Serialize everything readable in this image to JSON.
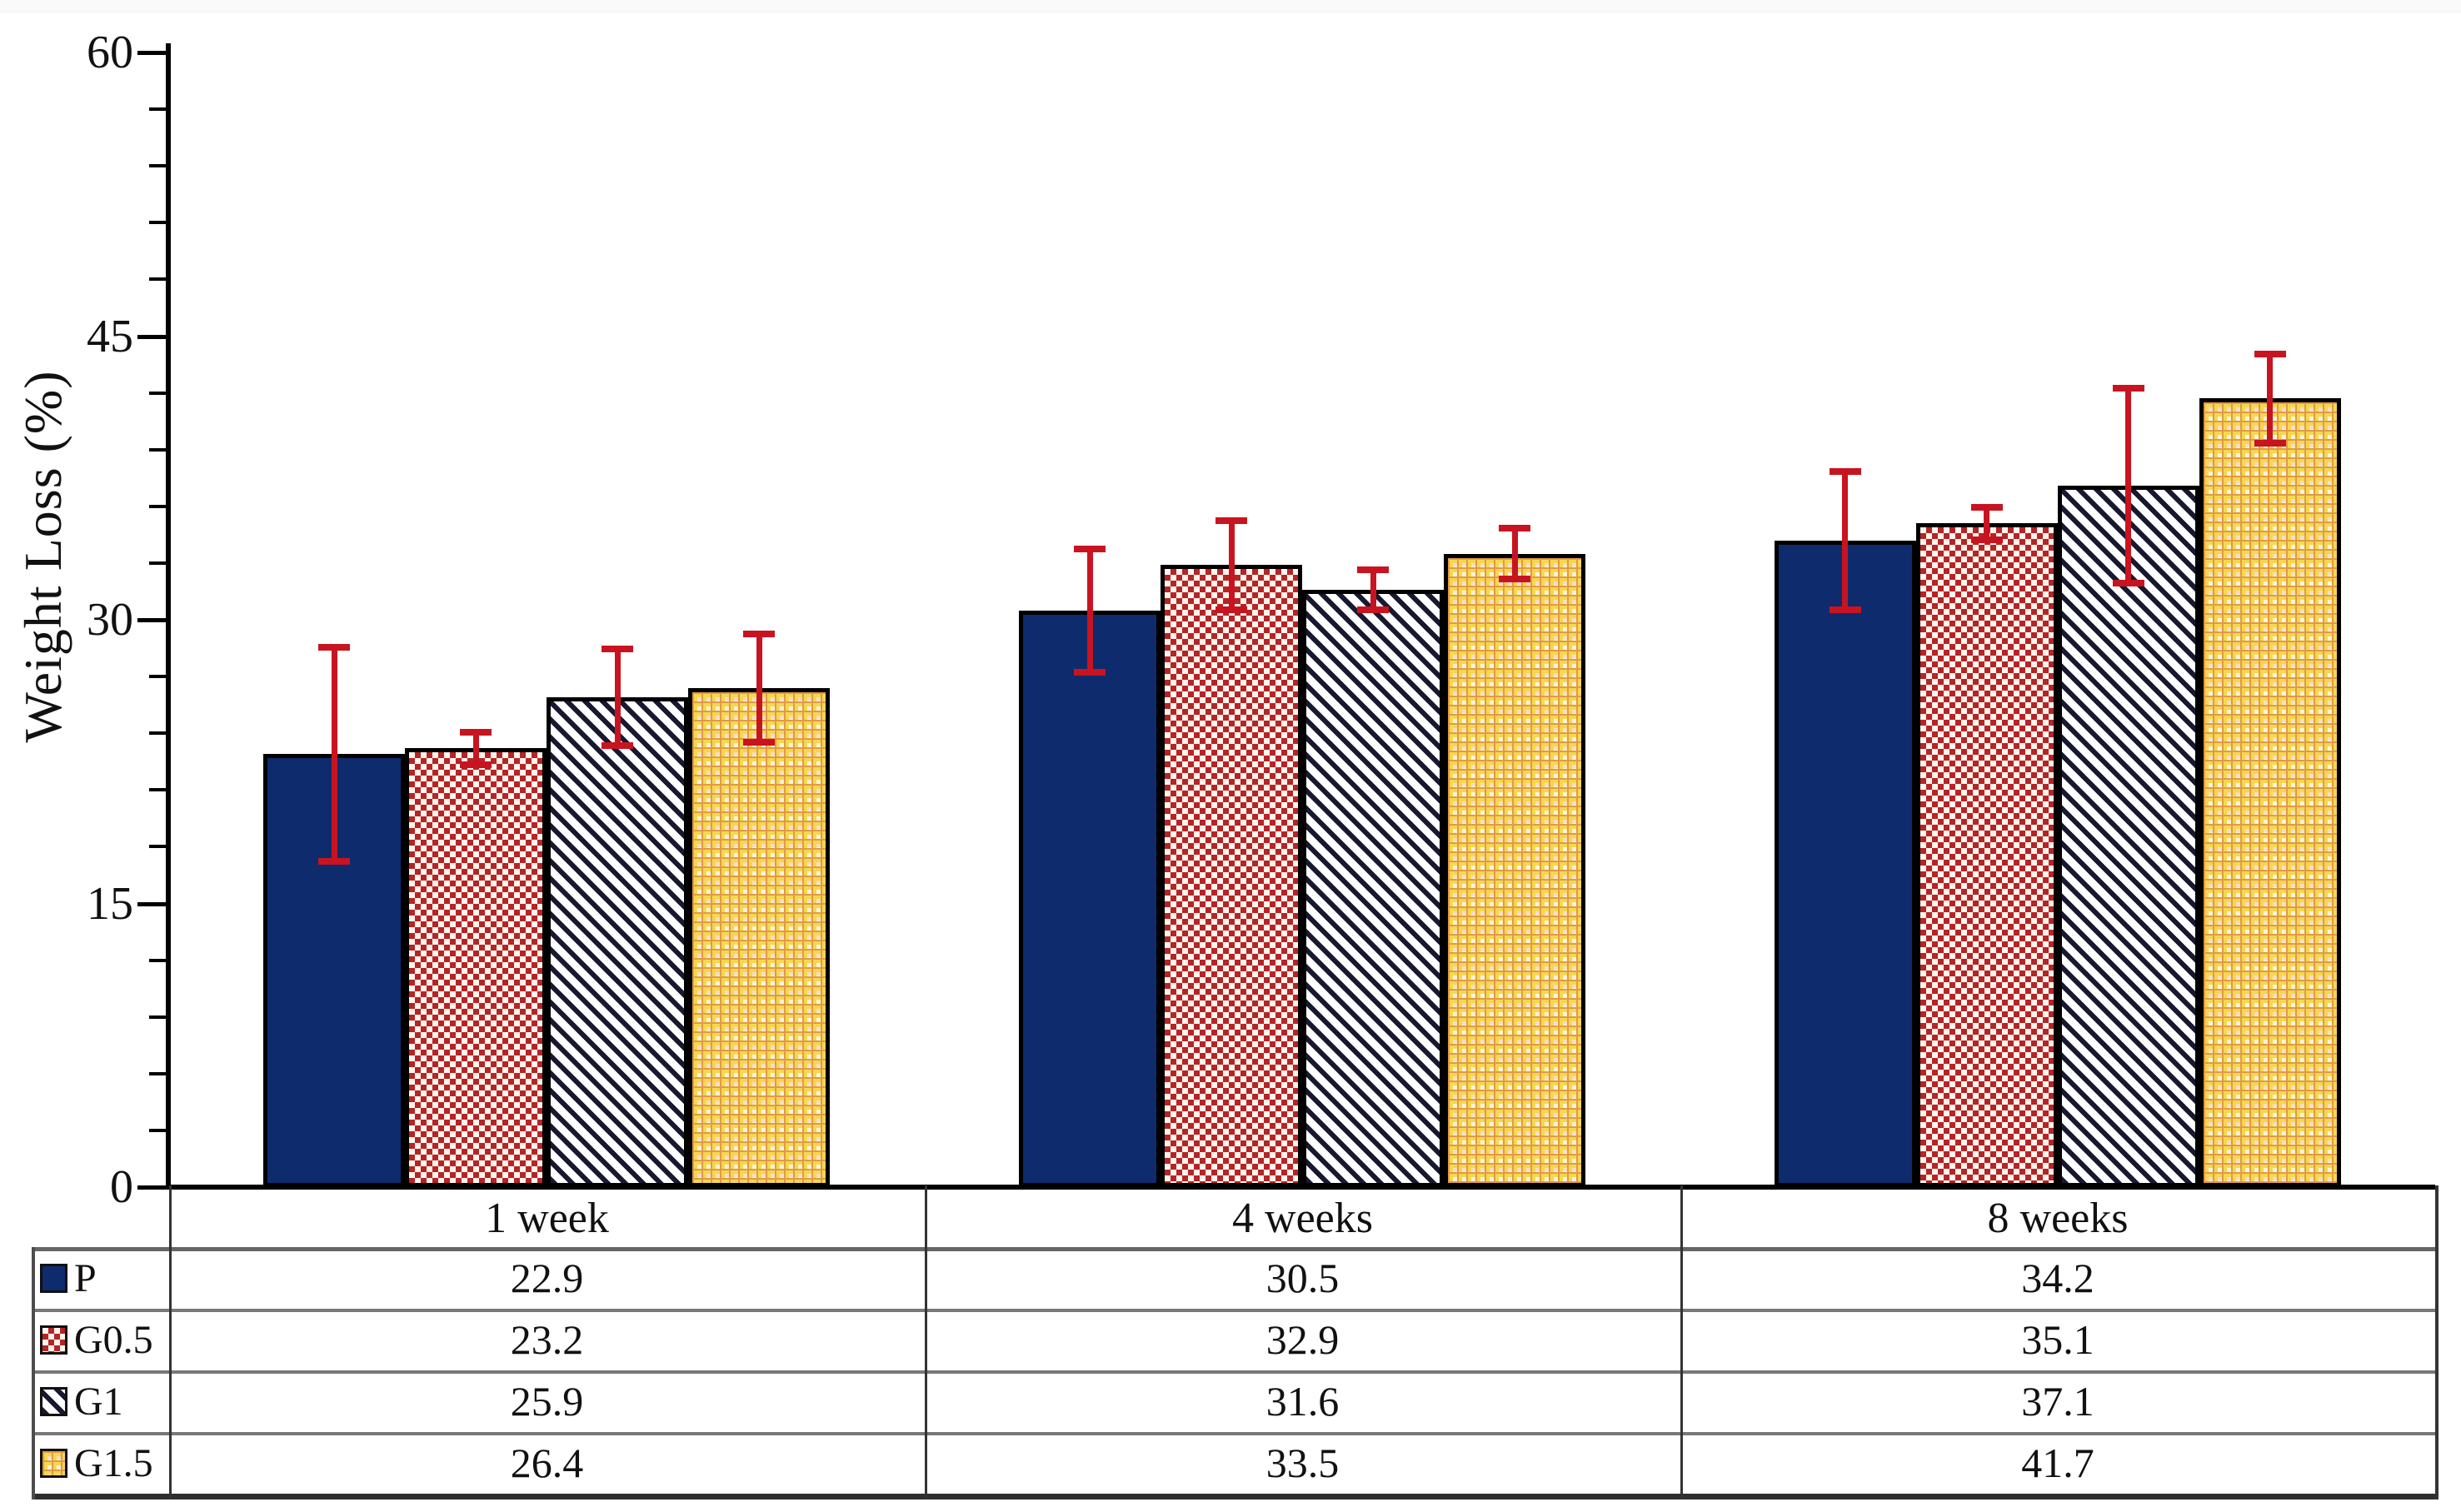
{
  "chart_data": {
    "type": "bar",
    "title": "",
    "xlabel": "",
    "ylabel": "Weight Loss (%)",
    "categories": [
      "1 week",
      "4 weeks",
      "8 weeks"
    ],
    "series": [
      {
        "name": "P",
        "pattern": "solid",
        "values": [
          22.9,
          30.5,
          34.2
        ],
        "errors": [
          5.7,
          3.3,
          3.7
        ]
      },
      {
        "name": "G0.5",
        "pattern": "checker",
        "values": [
          23.2,
          32.9,
          35.1
        ],
        "errors": [
          0.9,
          2.4,
          0.9
        ]
      },
      {
        "name": "G1",
        "pattern": "diagonal",
        "values": [
          25.9,
          31.6,
          37.1
        ],
        "errors": [
          2.6,
          1.1,
          5.2
        ]
      },
      {
        "name": "G1.5",
        "pattern": "grid",
        "values": [
          26.4,
          33.5,
          41.7
        ],
        "errors": [
          2.9,
          1.4,
          2.4
        ]
      }
    ],
    "y_axis": {
      "min": 0,
      "max": 60,
      "major_ticks": [
        0,
        15,
        30,
        45,
        60
      ],
      "minor_step": 3,
      "grid": false
    },
    "legend_position": "table-left-column",
    "colors": {
      "solid_fill": "#0e2b6e",
      "checker_fill": "#b62426",
      "checker_bg": "#fdf4ec",
      "stripe_fill": "#181830",
      "stripe_bg": "#ffffff",
      "grid_fill": "#fdf3da",
      "grid_line": "#f6d74e",
      "grid_line2": "#e09a48",
      "grid_pink": "#f7dcc6",
      "bar_border": "#000000",
      "error_bar": "#c81420"
    }
  }
}
